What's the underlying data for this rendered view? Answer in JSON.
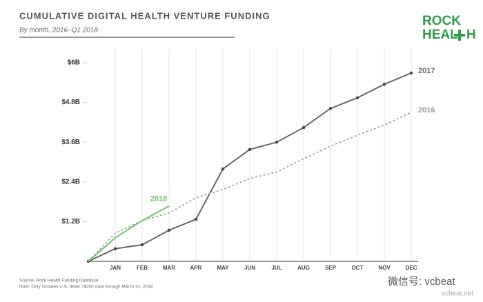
{
  "chart_data": {
    "type": "line",
    "title": "CUMULATIVE DIGITAL HEALTH VENTURE FUNDING",
    "subtitle": "By month, 2016–Q1 2018",
    "logo": [
      "ROCK",
      "HEAL",
      "H"
    ],
    "source": "Source: Rock Health Funding Database",
    "note": "Note: Only includes U.S. deals >$2M; data through March 31, 2018",
    "watermark": [
      "微信号: vcbeat",
      "vcbeat.net"
    ],
    "categories": [
      null,
      "JAN",
      "FEB",
      "MAR",
      "APR",
      "MAY",
      "JUN",
      "JUL",
      "AUG",
      "SEP",
      "OCT",
      "NOV",
      "DEC"
    ],
    "series": [
      {
        "name": "2017",
        "color": "#666666",
        "dash": false,
        "dots": true,
        "values": [
          0,
          0.38,
          0.5,
          0.94,
          1.27,
          2.79,
          3.38,
          3.6,
          4.04,
          4.62,
          4.94,
          5.35,
          5.69
        ]
      },
      {
        "name": "2016",
        "color": "#9a9a9a",
        "dash": true,
        "dots": false,
        "values": [
          0,
          0.85,
          1.23,
          1.46,
          1.92,
          2.17,
          2.5,
          2.7,
          3.1,
          3.48,
          3.81,
          4.12,
          4.5
        ]
      },
      {
        "name": "2018",
        "color": "#6cc56c",
        "dash": false,
        "dots": false,
        "values": [
          0,
          0.71,
          1.23,
          1.67,
          null,
          null,
          null,
          null,
          null,
          null,
          null,
          null,
          null
        ]
      }
    ],
    "ylim": [
      0,
      6
    ],
    "yticks": [
      {
        "value": 1.2,
        "label": "$1.2B"
      },
      {
        "value": 2.4,
        "label": "$2.4B"
      },
      {
        "value": 3.6,
        "label": "$3.6B"
      },
      {
        "value": 4.8,
        "label": "$4.8B"
      },
      {
        "value": 6,
        "label": "$6B"
      }
    ],
    "grid": "x"
  }
}
